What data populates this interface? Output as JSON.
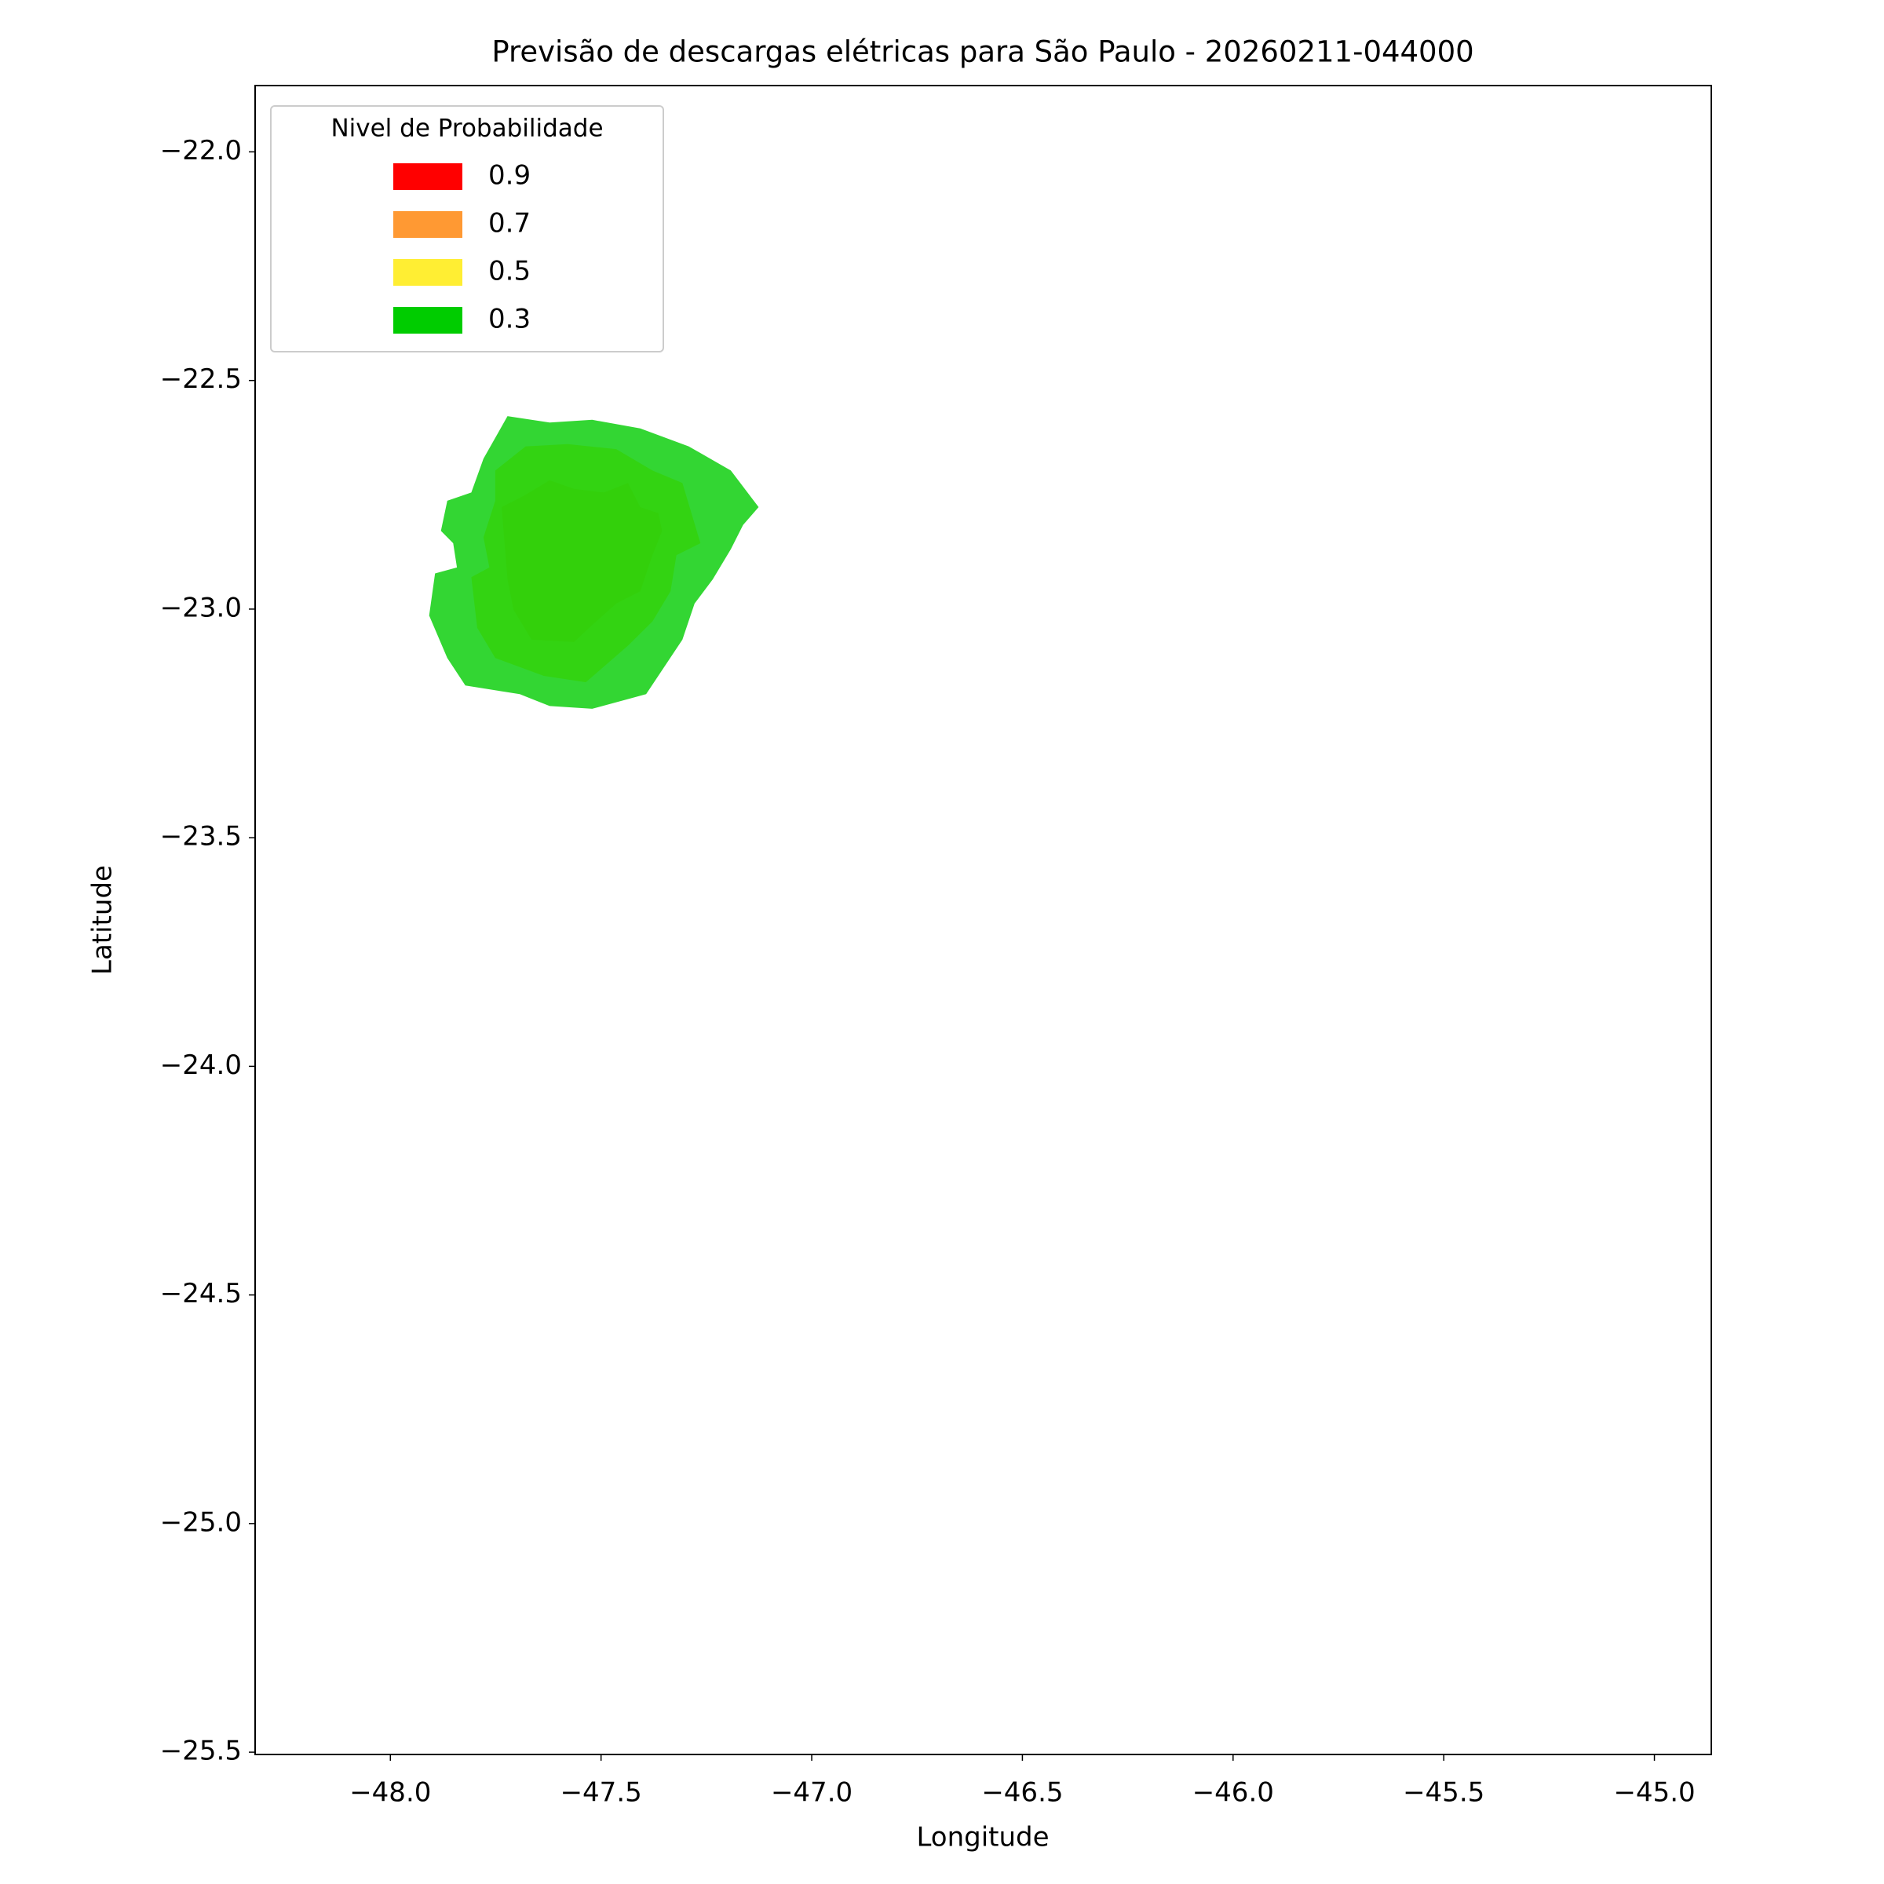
{
  "chart_data": {
    "type": "contour",
    "title": "Previsão de descargas elétricas para São Paulo - 20260211-044000",
    "xlabel": "Longitude",
    "ylabel": "Latitude",
    "xlim": [
      -48.321,
      -44.865
    ],
    "ylim": [
      -25.505,
      -21.855
    ],
    "xticks": [
      {
        "value": -48,
        "label": "−48.0"
      },
      {
        "value": -47.5,
        "label": "−47.5"
      },
      {
        "value": -47,
        "label": "−47.0"
      },
      {
        "value": -46.5,
        "label": "−46.5"
      },
      {
        "value": -46,
        "label": "−46.0"
      },
      {
        "value": -45.5,
        "label": "−45.5"
      },
      {
        "value": -45,
        "label": "−45.0"
      }
    ],
    "yticks": [
      {
        "value": -22,
        "label": "−22.0"
      },
      {
        "value": -22.5,
        "label": "−22.5"
      },
      {
        "value": -23,
        "label": "−23.0"
      },
      {
        "value": -23.5,
        "label": "−23.5"
      },
      {
        "value": -24,
        "label": "−24.0"
      },
      {
        "value": -24.5,
        "label": "−24.5"
      },
      {
        "value": -25,
        "label": "−25.0"
      },
      {
        "value": -25.5,
        "label": "−25.5"
      }
    ],
    "legend_title": "Nivel de Probabilidade",
    "legend": "upper left",
    "alpha": 0.8,
    "series": [
      {
        "name": "0.9",
        "color": "#ff0000"
      },
      {
        "name": "0.7",
        "color": "#ff9933",
        "x": [
          -47.736,
          -47.679,
          -47.622,
          -47.564,
          -47.493,
          -47.436,
          -47.407,
          -47.364,
          -47.355,
          -47.378,
          -47.407,
          -47.464,
          -47.521,
          -47.564,
          -47.665,
          -47.708,
          -47.722
        ],
        "y": [
          -22.777,
          -22.75,
          -22.718,
          -22.737,
          -22.745,
          -22.724,
          -22.777,
          -22.79,
          -22.829,
          -22.882,
          -22.961,
          -22.988,
          -23.035,
          -23.072,
          -23.067,
          -23.001,
          -22.935
        ]
      },
      {
        "name": "0.5",
        "color": "#ffee33",
        "x": [
          -47.808,
          -47.765,
          -47.779,
          -47.751,
          -47.751,
          -47.679,
          -47.579,
          -47.464,
          -47.378,
          -47.307,
          -47.264,
          -47.321,
          -47.335,
          -47.378,
          -47.436,
          -47.536,
          -47.636,
          -47.751,
          -47.794
        ],
        "y": [
          -22.93,
          -22.909,
          -22.843,
          -22.763,
          -22.697,
          -22.644,
          -22.639,
          -22.65,
          -22.697,
          -22.724,
          -22.856,
          -22.882,
          -22.961,
          -23.027,
          -23.08,
          -23.16,
          -23.146,
          -23.107,
          -23.041
        ]
      },
      {
        "name": "0.3",
        "color": "#00cc00",
        "x": [
          -47.908,
          -47.894,
          -47.842,
          -47.851,
          -47.88,
          -47.865,
          -47.808,
          -47.779,
          -47.722,
          -47.622,
          -47.521,
          -47.407,
          -47.292,
          -47.192,
          -47.126,
          -47.163,
          -47.192,
          -47.235,
          -47.278,
          -47.307,
          -47.393,
          -47.521,
          -47.622,
          -47.693,
          -47.822,
          -47.865
        ],
        "y": [
          -23.014,
          -22.922,
          -22.909,
          -22.856,
          -22.829,
          -22.763,
          -22.745,
          -22.671,
          -22.578,
          -22.592,
          -22.586,
          -22.605,
          -22.644,
          -22.697,
          -22.777,
          -22.816,
          -22.869,
          -22.935,
          -22.988,
          -23.067,
          -23.186,
          -23.218,
          -23.212,
          -23.186,
          -23.167,
          -23.107
        ]
      }
    ]
  }
}
